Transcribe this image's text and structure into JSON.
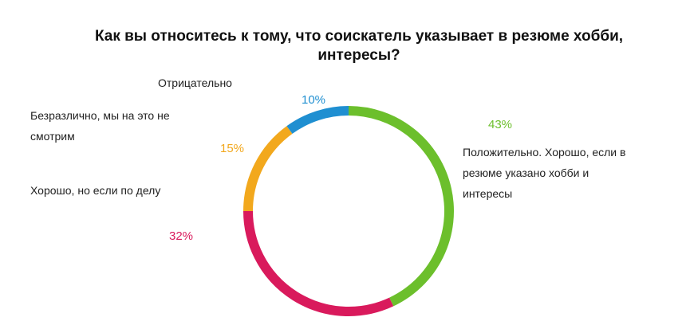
{
  "chart_data": {
    "type": "donut",
    "title": "Как вы относитесь к тому, что соискатель указывает в резюме хобби, интересы?",
    "categories": [
      "Положительно. Хорошо, если в резюме указано хобби и интересы",
      "Хорошо, но если по делу",
      "Безразлично, мы на это не смотрим",
      "Отрицательно"
    ],
    "values": [
      43,
      32,
      15,
      10
    ],
    "value_labels": [
      "43%",
      "32%",
      "15%",
      "10%"
    ],
    "colors": [
      "#6cbf2c",
      "#d91a5c",
      "#f2a81d",
      "#1f8fd1"
    ]
  }
}
